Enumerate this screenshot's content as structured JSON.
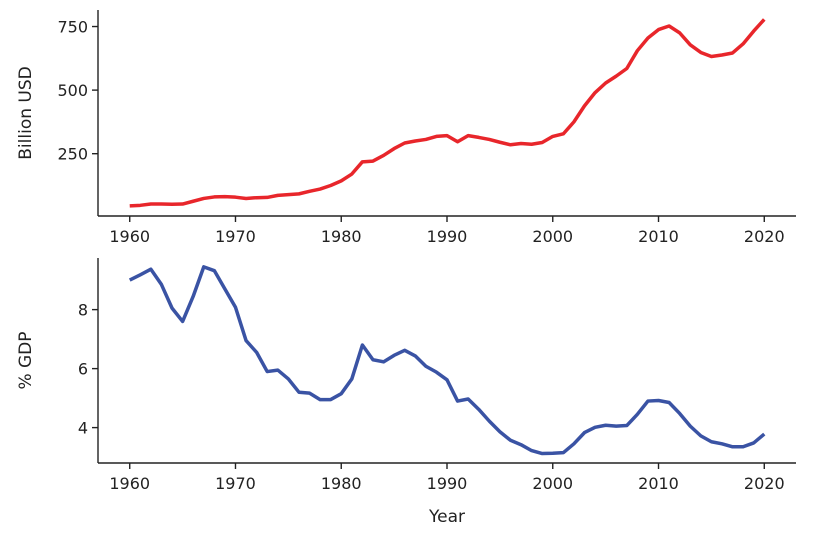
{
  "chart_data": [
    {
      "type": "line",
      "title": "",
      "xlabel": "",
      "ylabel": "Billion USD",
      "xlim": [
        1957,
        2023
      ],
      "ylim": [
        5,
        815
      ],
      "xticks": [
        1960,
        1970,
        1980,
        1990,
        2000,
        2010,
        2020
      ],
      "yticks": [
        250,
        500,
        750
      ],
      "grid": false,
      "color": "#e8262b",
      "series": [
        {
          "x": [
            1960,
            1961,
            1962,
            1963,
            1964,
            1965,
            1966,
            1967,
            1968,
            1969,
            1970,
            1971,
            1972,
            1973,
            1974,
            1975,
            1976,
            1977,
            1978,
            1979,
            1980,
            1981,
            1982,
            1983,
            1984,
            1985,
            1986,
            1987,
            1988,
            1989,
            1990,
            1991,
            1992,
            1993,
            1994,
            1995,
            1996,
            1997,
            1998,
            1999,
            2000,
            2001,
            2002,
            2003,
            2004,
            2005,
            2006,
            2007,
            2008,
            2009,
            2010,
            2011,
            2012,
            2013,
            2014,
            2015,
            2016,
            2017,
            2018,
            2019,
            2020
          ],
          "values": [
            45,
            47,
            52,
            52,
            51,
            52,
            63,
            74,
            80,
            81,
            79,
            74,
            77,
            78,
            86,
            89,
            92,
            102,
            111,
            125,
            143,
            170,
            218,
            221,
            243,
            270,
            292,
            300,
            306,
            318,
            321,
            297,
            321,
            314,
            306,
            295,
            285,
            290,
            287,
            294,
            318,
            328,
            375,
            438,
            490,
            528,
            555,
            585,
            655,
            705,
            738,
            752,
            725,
            678,
            648,
            632,
            638,
            646,
            682,
            732,
            778
          ]
        }
      ]
    },
    {
      "type": "line",
      "title": "",
      "xlabel": "Year",
      "ylabel": "% GDP",
      "xlim": [
        1957,
        2023
      ],
      "ylim": [
        2.8,
        9.75
      ],
      "xticks": [
        1960,
        1970,
        1980,
        1990,
        2000,
        2010,
        2020
      ],
      "yticks": [
        4,
        6,
        8
      ],
      "grid": false,
      "color": "#3a53a4",
      "series": [
        {
          "x": [
            1960,
            1961,
            1962,
            1963,
            1964,
            1965,
            1966,
            1967,
            1968,
            1969,
            1970,
            1971,
            1972,
            1973,
            1974,
            1975,
            1976,
            1977,
            1978,
            1979,
            1980,
            1981,
            1982,
            1983,
            1984,
            1985,
            1986,
            1987,
            1988,
            1989,
            1990,
            1991,
            1992,
            1993,
            1994,
            1995,
            1996,
            1997,
            1998,
            1999,
            2000,
            2001,
            2002,
            2003,
            2004,
            2005,
            2006,
            2007,
            2008,
            2009,
            2010,
            2011,
            2012,
            2013,
            2014,
            2015,
            2016,
            2017,
            2018,
            2019,
            2020
          ],
          "values": [
            9.0,
            9.18,
            9.37,
            8.85,
            8.05,
            7.6,
            8.45,
            9.45,
            9.32,
            8.7,
            8.08,
            6.95,
            6.55,
            5.9,
            5.95,
            5.65,
            5.2,
            5.17,
            4.95,
            4.95,
            5.15,
            5.65,
            6.8,
            6.3,
            6.23,
            6.45,
            6.62,
            6.43,
            6.08,
            5.88,
            5.62,
            4.9,
            4.97,
            4.62,
            4.22,
            3.86,
            3.57,
            3.42,
            3.22,
            3.12,
            3.13,
            3.15,
            3.45,
            3.83,
            4.01,
            4.08,
            4.05,
            4.07,
            4.45,
            4.9,
            4.92,
            4.85,
            4.48,
            4.05,
            3.72,
            3.52,
            3.45,
            3.35,
            3.35,
            3.48,
            3.78
          ]
        }
      ]
    }
  ]
}
